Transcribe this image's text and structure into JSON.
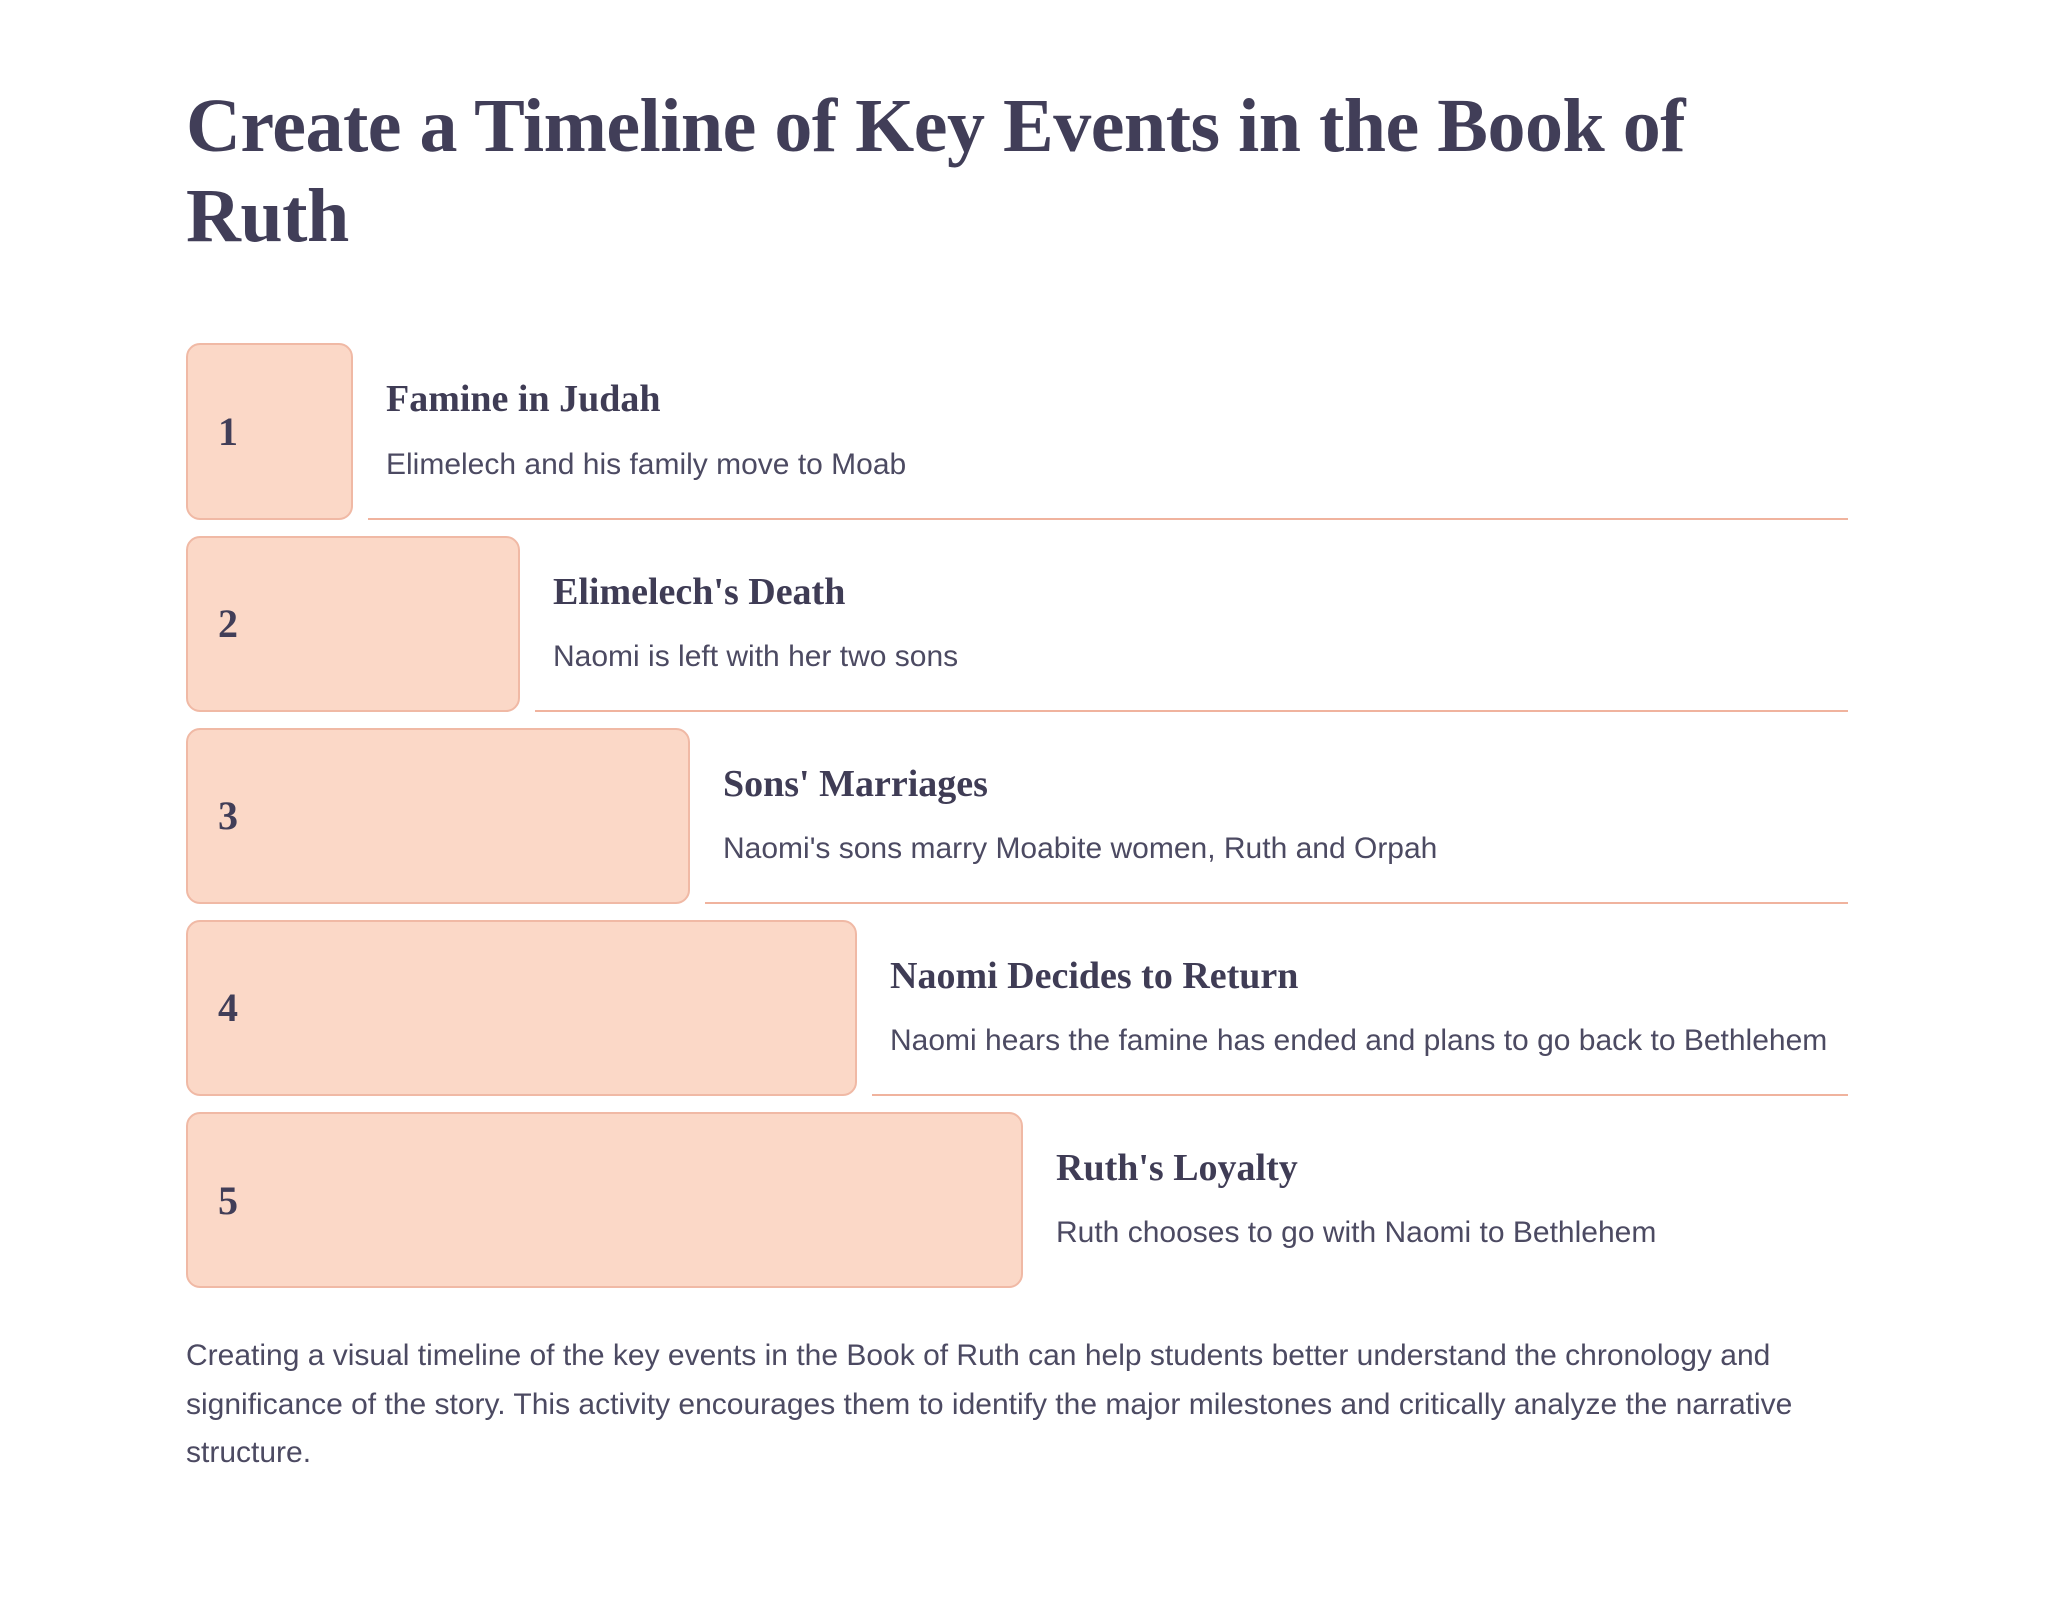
{
  "page": {
    "title": "Create a Timeline of Key Events in the Book of Ruth",
    "footer": "Creating a visual timeline of the key events in the Book of Ruth can help students better understand the chronology and significance of the story. This activity encourages them to identify the major milestones and critically analyze the narrative structure."
  },
  "timeline": {
    "items": [
      {
        "number": "1",
        "title": "Famine in Judah",
        "description": "Elimelech and his family move to Moab"
      },
      {
        "number": "2",
        "title": "Elimelech's Death",
        "description": "Naomi is left with her two sons"
      },
      {
        "number": "3",
        "title": "Sons' Marriages",
        "description": "Naomi's sons marry Moabite women, Ruth and Orpah"
      },
      {
        "number": "4",
        "title": "Naomi Decides to Return",
        "description": "Naomi hears the famine has ended and plans to go back to Bethlehem"
      },
      {
        "number": "5",
        "title": "Ruth's Loyalty",
        "description": "Ruth chooses to go with Naomi to Bethlehem"
      }
    ]
  },
  "colors": {
    "background": "#FFFFFF",
    "heading": "#413E58",
    "body_text": "#4C4A62",
    "bar_fill": "#FBD8C7",
    "bar_border": "#F0B9A5",
    "divider": "#F0B39E"
  }
}
